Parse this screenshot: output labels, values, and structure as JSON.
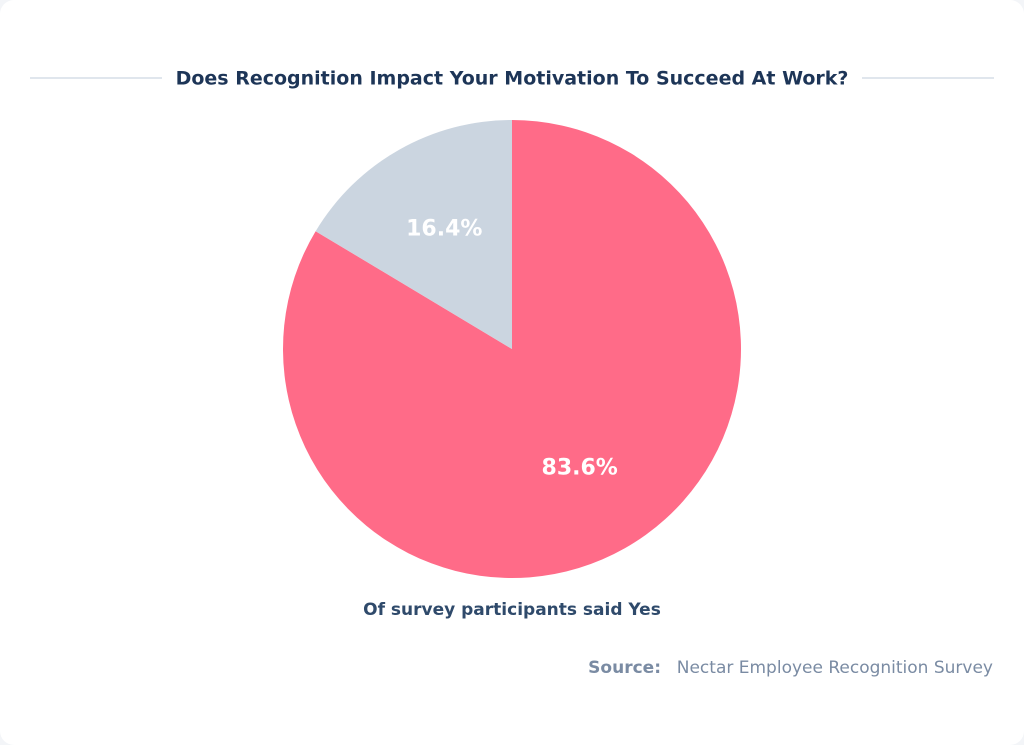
{
  "chart_data": {
    "type": "pie",
    "title": "Does Recognition Impact Your Motivation To Succeed At Work?",
    "values": [
      83.6,
      16.4
    ],
    "value_labels": [
      "83.6%",
      "16.4%"
    ],
    "colors": [
      "#ff6b88",
      "#cbd5e0"
    ],
    "caption": "Of survey participants said Yes",
    "source_label": "Source:",
    "source": "Nectar Employee Recognition Survey"
  }
}
